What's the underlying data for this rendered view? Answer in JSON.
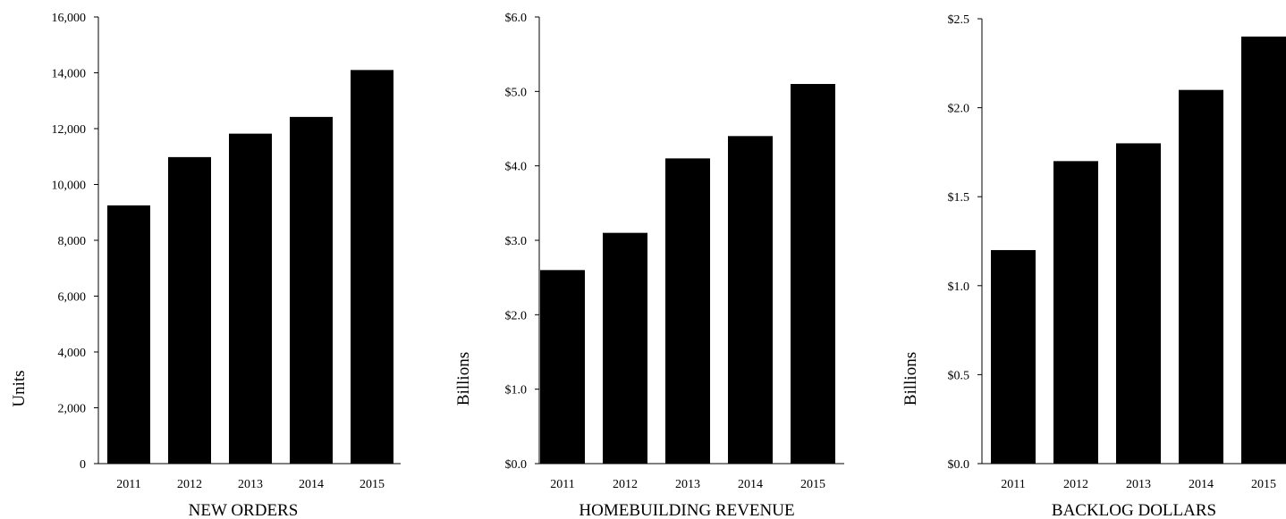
{
  "bar_color": "#000000",
  "chart_data": [
    {
      "type": "bar",
      "title": "NEW ORDERS",
      "xlabel": "",
      "ylabel": "Units",
      "categories": [
        "2011",
        "2012",
        "2013",
        "2014",
        "2015"
      ],
      "values": [
        9250,
        10980,
        11820,
        12420,
        14100
      ],
      "ylim": [
        0,
        16000
      ],
      "yticks": [
        0,
        2000,
        4000,
        6000,
        8000,
        10000,
        12000,
        14000,
        16000
      ],
      "ytick_labels": [
        "0",
        "2,000",
        "4,000",
        "6,000",
        "8,000",
        "10,000",
        "12,000",
        "14,000",
        "16,000"
      ],
      "grid": false,
      "legend": "none"
    },
    {
      "type": "bar",
      "title": "HOMEBUILDING REVENUE",
      "xlabel": "",
      "ylabel": "Billions",
      "categories": [
        "2011",
        "2012",
        "2013",
        "2014",
        "2015"
      ],
      "values": [
        2.6,
        3.1,
        4.1,
        4.4,
        5.1
      ],
      "ylim": [
        0,
        6
      ],
      "yticks": [
        0,
        1,
        2,
        3,
        4,
        5,
        6
      ],
      "ytick_labels": [
        "$0.0",
        "$1.0",
        "$2.0",
        "$3.0",
        "$4.0",
        "$5.0",
        "$6.0"
      ],
      "grid": false,
      "legend": "none"
    },
    {
      "type": "bar",
      "title": "BACKLOG DOLLARS",
      "xlabel": "",
      "ylabel": "Billions",
      "categories": [
        "2011",
        "2012",
        "2013",
        "2014",
        "2015"
      ],
      "values": [
        1.2,
        1.7,
        1.8,
        2.1,
        2.4
      ],
      "ylim": [
        0,
        2.5
      ],
      "yticks": [
        0,
        0.5,
        1,
        1.5,
        2,
        2.5
      ],
      "ytick_labels": [
        "$0.0",
        "$0.5",
        "$1.0",
        "$1.5",
        "$2.0",
        "$2.5"
      ],
      "grid": false,
      "legend": "none"
    }
  ]
}
